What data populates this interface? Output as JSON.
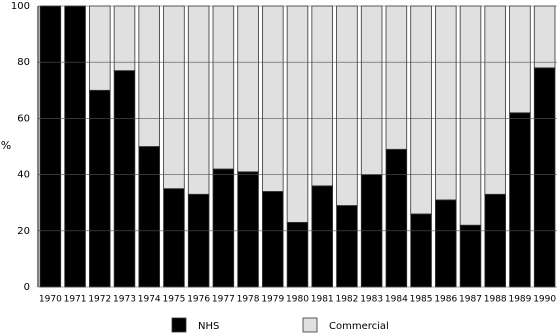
{
  "chart_data": {
    "type": "stacked-bar",
    "y_label": "%",
    "categories": [
      "1970",
      "1971",
      "1972",
      "1973",
      "1974",
      "1975",
      "1976",
      "1977",
      "1978",
      "1979",
      "1980",
      "1981",
      "1982",
      "1983",
      "1984",
      "1985",
      "1986",
      "1987",
      "1988",
      "1989",
      "1990"
    ],
    "series": [
      {
        "name": "NHS",
        "color": "#000000",
        "values": [
          100,
          100,
          70,
          77,
          50,
          35,
          33,
          42,
          41,
          34,
          23,
          36,
          29,
          40,
          49,
          26,
          31,
          22,
          33,
          62,
          78
        ]
      },
      {
        "name": "Commercial",
        "color": "#e0e0e0",
        "values": [
          0,
          0,
          30,
          23,
          50,
          65,
          67,
          58,
          59,
          66,
          77,
          64,
          71,
          60,
          51,
          74,
          69,
          78,
          67,
          38,
          22
        ]
      }
    ],
    "ylim": [
      0,
      100
    ],
    "yticks": [
      0,
      20,
      40,
      60,
      80,
      100
    ],
    "grid": true
  }
}
